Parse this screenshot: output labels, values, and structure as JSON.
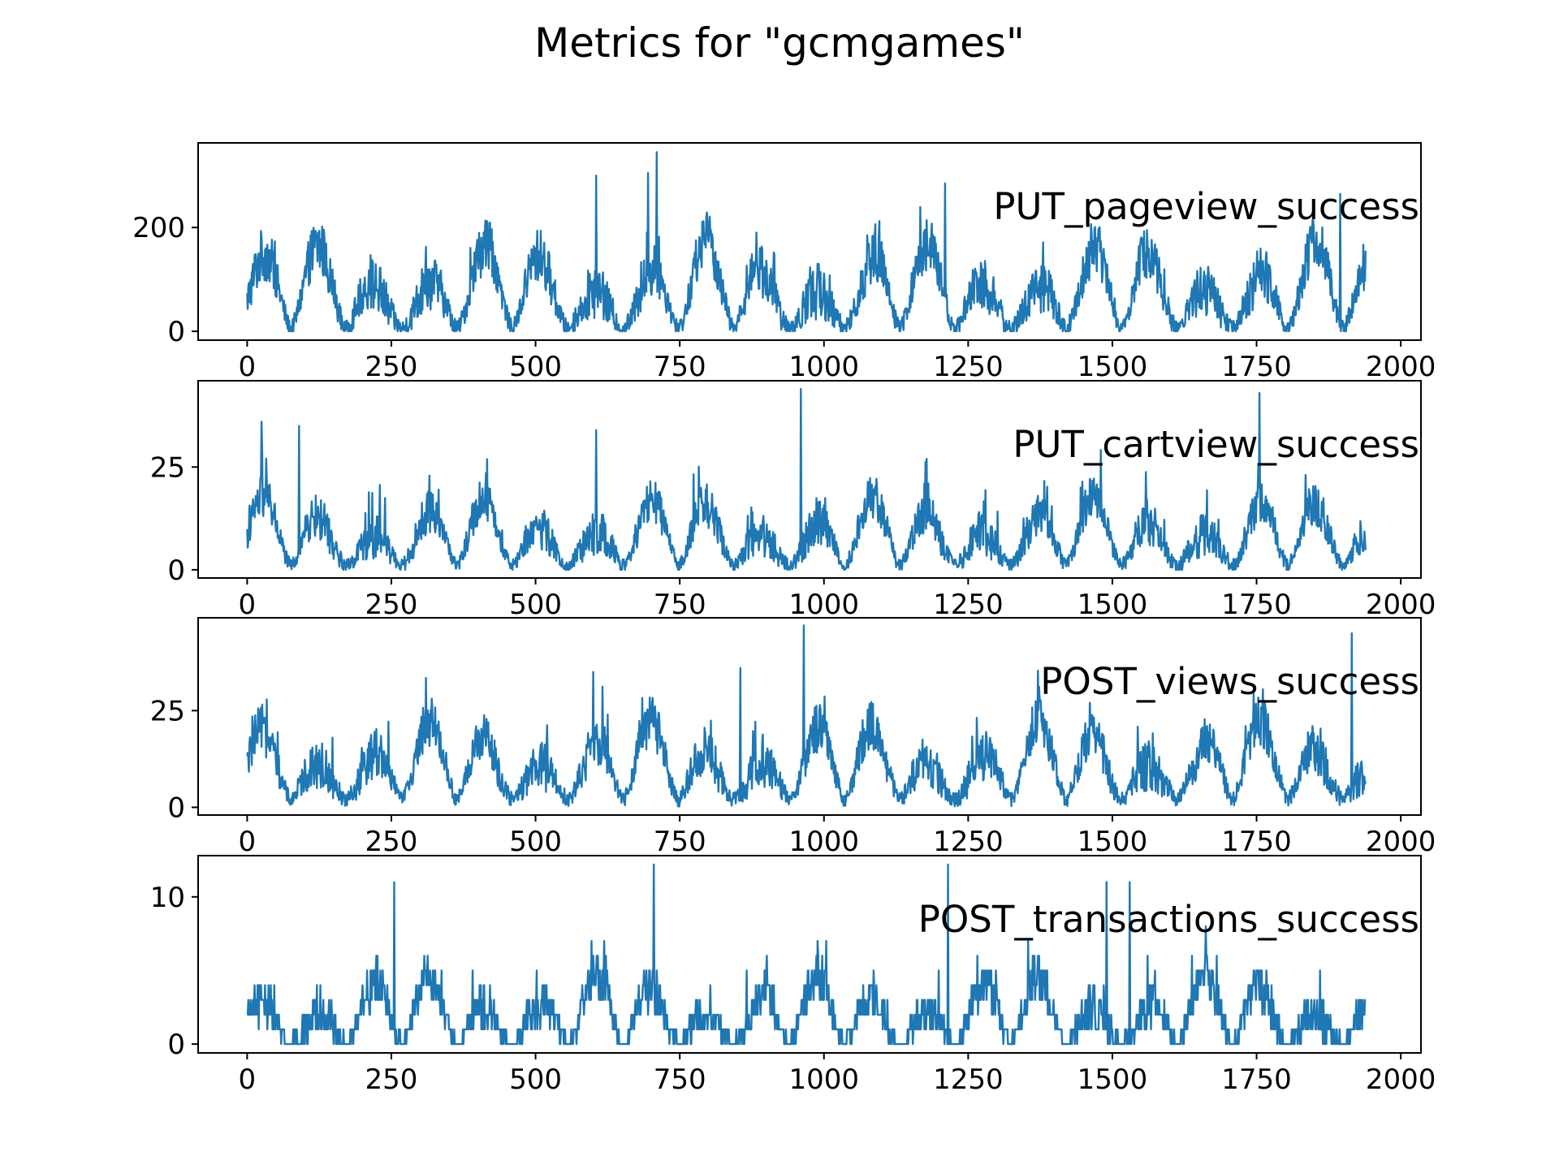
{
  "title": "Metrics for \"gcmgames\"",
  "style": {
    "line_color": "#1f77b4",
    "axis_color": "#000000",
    "background": "#ffffff"
  },
  "chart_data": [
    {
      "type": "line",
      "label": "PUT_pageview_success",
      "legend_placement": "upper-right (in-axes text annotation)",
      "grid": false,
      "xlim": [
        -85,
        2035
      ],
      "ylim": [
        -17,
        363
      ],
      "xticks": [
        0,
        250,
        500,
        750,
        1000,
        1250,
        1500,
        1750,
        2000
      ],
      "yticks": [
        0,
        200
      ],
      "n_points": 1940,
      "cycle_period": 96,
      "baseline_low": 5,
      "typical_peak": 140,
      "peak_range": [
        180,
        300
      ],
      "spikes": [
        [
          605,
          300
        ],
        [
          695,
          305
        ],
        [
          710,
          345
        ],
        [
          1210,
          285
        ],
        [
          1895,
          265
        ]
      ]
    },
    {
      "type": "line",
      "label": "PUT_cartview_success",
      "legend_placement": "upper-right (in-axes text annotation)",
      "grid": false,
      "xlim": [
        -85,
        2035
      ],
      "ylim": [
        -2,
        46
      ],
      "xticks": [
        0,
        250,
        500,
        750,
        1000,
        1250,
        1500,
        1750,
        2000
      ],
      "yticks": [
        0,
        25
      ],
      "n_points": 1940,
      "cycle_period": 96,
      "baseline_low": 1,
      "typical_peak": 14,
      "peak_range": [
        22,
        35
      ],
      "spikes": [
        [
          25,
          36
        ],
        [
          90,
          35
        ],
        [
          605,
          34
        ],
        [
          960,
          44
        ],
        [
          1755,
          43
        ]
      ]
    },
    {
      "type": "line",
      "label": "POST_views_success",
      "legend_placement": "upper-right (in-axes text annotation)",
      "grid": false,
      "xlim": [
        -85,
        2035
      ],
      "ylim": [
        -2,
        49
      ],
      "xticks": [
        0,
        250,
        500,
        750,
        1000,
        1250,
        1500,
        1750,
        2000
      ],
      "yticks": [
        0,
        25
      ],
      "n_points": 1940,
      "cycle_period": 96,
      "baseline_low": 2,
      "typical_peak": 17,
      "peak_range": [
        24,
        35
      ],
      "spikes": [
        [
          600,
          35
        ],
        [
          855,
          36
        ],
        [
          965,
          47
        ],
        [
          1915,
          45
        ]
      ]
    },
    {
      "type": "line",
      "label": "POST_transactions_success",
      "legend_placement": "upper-right (in-axes text annotation)",
      "grid": false,
      "xlim": [
        -85,
        2035
      ],
      "ylim": [
        -0.6,
        12.8
      ],
      "xticks": [
        0,
        250,
        500,
        750,
        1000,
        1250,
        1500,
        1750,
        2000
      ],
      "yticks": [
        0,
        10
      ],
      "n_points": 1940,
      "cycle_period": 96,
      "baseline_low": 0,
      "typical_peak": 4,
      "peak_range": [
        6,
        11
      ],
      "spikes": [
        [
          255,
          11
        ],
        [
          705,
          12.2
        ],
        [
          1215,
          12.2
        ],
        [
          1490,
          11
        ],
        [
          1530,
          11
        ]
      ]
    }
  ]
}
